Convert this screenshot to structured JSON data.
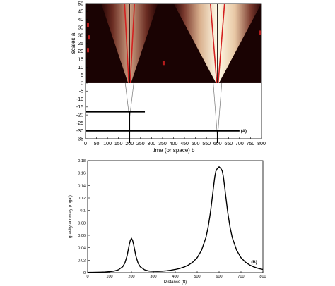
{
  "chart_data": [
    {
      "type": "heatmap",
      "panel_label": "(A)",
      "xlabel": "time (or space) b",
      "ylabel": "scales a",
      "xlim": [
        0,
        800
      ],
      "ylim": [
        -35,
        50
      ],
      "x_ticks": [
        "0",
        "50",
        "100",
        "150",
        "200",
        "250",
        "300",
        "350",
        "400",
        "450",
        "500",
        "550",
        "600",
        "650",
        "700",
        "750",
        "800"
      ],
      "y_ticks": [
        "50",
        "45",
        "40",
        "35",
        "30",
        "25",
        "20",
        "15",
        "10",
        "5",
        "0",
        "-5",
        "-10",
        "-15",
        "-20",
        "-25",
        "-30",
        "-35"
      ],
      "cones": [
        {
          "apex_x": 200,
          "strength": 0.45
        },
        {
          "apex_x": 600,
          "strength": 1.0
        }
      ],
      "depth_markers": [
        {
          "x_start": 0,
          "x_end": 270,
          "y": -18,
          "source_x": 200
        },
        {
          "x_start": 0,
          "x_end": 700,
          "y": -30,
          "source_x": 600
        }
      ]
    },
    {
      "type": "line",
      "panel_label": "(B)",
      "xlabel": "Distance (ft)",
      "ylabel": "gravity anomaly (mgal)",
      "xlim": [
        0,
        800
      ],
      "ylim": [
        0,
        0.18
      ],
      "x_ticks": [
        "0",
        "100",
        "200",
        "300",
        "400",
        "500",
        "600",
        "700",
        "800"
      ],
      "y_ticks": [
        "0",
        "0.02",
        "0.04",
        "0.06",
        "0.08",
        "0.1",
        "0.12",
        "0.14",
        "0.16",
        "0.18"
      ],
      "series": [
        {
          "x": [
            0,
            20,
            40,
            60,
            80,
            100,
            120,
            140,
            160,
            170,
            180,
            185,
            190,
            195,
            200,
            205,
            210,
            215,
            220,
            230,
            240,
            260,
            280,
            300,
            320,
            340,
            360,
            380,
            400,
            420,
            440,
            460,
            480,
            500,
            520,
            540,
            550,
            560,
            570,
            575,
            580,
            585,
            590,
            595,
            600,
            605,
            610,
            615,
            620,
            625,
            630,
            640,
            650,
            660,
            680,
            700,
            720,
            740,
            760,
            780,
            800
          ],
          "y": [
            0.0004,
            0.0005,
            0.0006,
            0.0008,
            0.0011,
            0.0016,
            0.0025,
            0.0045,
            0.0095,
            0.0155,
            0.027,
            0.036,
            0.045,
            0.052,
            0.055,
            0.052,
            0.045,
            0.036,
            0.027,
            0.0155,
            0.0095,
            0.0045,
            0.0027,
            0.0022,
            0.0021,
            0.0024,
            0.003,
            0.0039,
            0.0051,
            0.0067,
            0.009,
            0.0122,
            0.0169,
            0.024,
            0.036,
            0.0565,
            0.0731,
            0.0955,
            0.1239,
            0.1389,
            0.1531,
            0.1626,
            0.1662,
            0.1683,
            0.17,
            0.1683,
            0.1662,
            0.1626,
            0.1531,
            0.1389,
            0.1239,
            0.0955,
            0.0731,
            0.0565,
            0.036,
            0.024,
            0.0169,
            0.0122,
            0.009,
            0.0067,
            0.0051
          ]
        }
      ]
    }
  ]
}
